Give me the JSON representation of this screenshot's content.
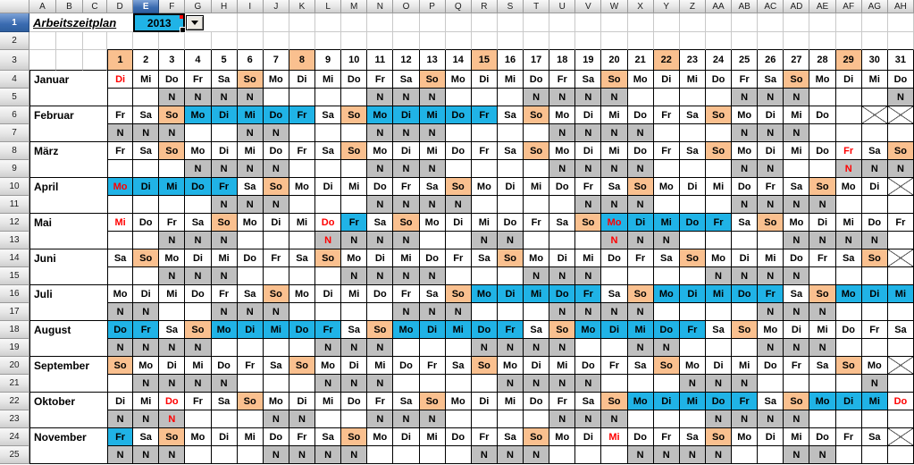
{
  "app": {
    "title": "Arbeitszeitplan",
    "year": "2013"
  },
  "colors": {
    "weekend": "#FAC08F",
    "shift": "#20B3E6",
    "night": "#BFBFBF",
    "holiday": "#FF0000",
    "header_selected": "#3A6BB0"
  },
  "sheet": {
    "column_letters": [
      "A",
      "B",
      "C",
      "D",
      "E",
      "F",
      "G",
      "H",
      "I",
      "J",
      "K",
      "L",
      "M",
      "N",
      "O",
      "P",
      "Q",
      "R",
      "S",
      "T",
      "U",
      "V",
      "W",
      "X",
      "Y",
      "Z",
      "AA",
      "AB",
      "AC",
      "AD",
      "AE",
      "AF",
      "AG",
      "AH"
    ],
    "row_numbers": [
      "1",
      "2",
      "3",
      "4",
      "5",
      "6",
      "7",
      "8",
      "9",
      "10",
      "11",
      "12",
      "13",
      "14",
      "15",
      "16",
      "17",
      "18",
      "19",
      "20",
      "21",
      "22",
      "23",
      "24",
      "25"
    ],
    "selected": {
      "column": "E",
      "row": "1"
    },
    "day_numbers": [
      1,
      2,
      3,
      4,
      5,
      6,
      7,
      8,
      9,
      10,
      11,
      12,
      13,
      14,
      15,
      16,
      17,
      18,
      19,
      20,
      21,
      22,
      23,
      24,
      25,
      26,
      27,
      28,
      29,
      30,
      31
    ],
    "highlighted_day_numbers": [
      1,
      8,
      15,
      22,
      29
    ],
    "night_label": "N",
    "months": [
      {
        "name": "Januar",
        "weekdays": [
          "Di",
          "Mi",
          "Do",
          "Fr",
          "Sa",
          "So",
          "Mo",
          "Di",
          "Mi",
          "Do",
          "Fr",
          "Sa",
          "So",
          "Mo",
          "Di",
          "Mi",
          "Do",
          "Fr",
          "Sa",
          "So",
          "Mo",
          "Di",
          "Mi",
          "Do",
          "Fr",
          "Sa",
          "So",
          "Mo",
          "Di",
          "Mi",
          "Do"
        ],
        "weekend_days": [
          6,
          13,
          20,
          27
        ],
        "shift_days": [],
        "holiday_days": [
          1
        ],
        "night_days": [
          3,
          4,
          5,
          6,
          11,
          12,
          13,
          17,
          18,
          19,
          20,
          25,
          26,
          27,
          31
        ],
        "holiday_night_days": [],
        "crossed_days": []
      },
      {
        "name": "Februar",
        "weekdays": [
          "Fr",
          "Sa",
          "So",
          "Mo",
          "Di",
          "Mi",
          "Do",
          "Fr",
          "Sa",
          "So",
          "Mo",
          "Di",
          "Mi",
          "Do",
          "Fr",
          "Sa",
          "So",
          "Mo",
          "Di",
          "Mi",
          "Do",
          "Fr",
          "Sa",
          "So",
          "Mo",
          "Di",
          "Mi",
          "Do",
          "",
          "",
          ""
        ],
        "weekend_days": [
          3,
          10,
          17,
          24
        ],
        "shift_days": [
          4,
          5,
          6,
          7,
          8,
          11,
          12,
          13,
          14,
          15
        ],
        "holiday_days": [],
        "night_days": [
          1,
          2,
          3,
          6,
          7,
          11,
          12,
          13,
          18,
          19,
          20,
          21,
          25,
          26,
          27
        ],
        "holiday_night_days": [],
        "crossed_days": [
          30,
          31
        ]
      },
      {
        "name": "März",
        "weekdays": [
          "Fr",
          "Sa",
          "So",
          "Mo",
          "Di",
          "Mi",
          "Do",
          "Fr",
          "Sa",
          "So",
          "Mo",
          "Di",
          "Mi",
          "Do",
          "Fr",
          "Sa",
          "So",
          "Mo",
          "Di",
          "Mi",
          "Do",
          "Fr",
          "Sa",
          "So",
          "Mo",
          "Di",
          "Mi",
          "Do",
          "Fr",
          "Sa",
          "So"
        ],
        "weekend_days": [
          3,
          10,
          17,
          24,
          31
        ],
        "shift_days": [],
        "holiday_days": [
          29
        ],
        "night_days": [
          4,
          5,
          6,
          7,
          11,
          12,
          13,
          18,
          19,
          20,
          21,
          25,
          26,
          29,
          30,
          31
        ],
        "holiday_night_days": [
          29
        ],
        "crossed_days": []
      },
      {
        "name": "April",
        "weekdays": [
          "Mo",
          "Di",
          "Mi",
          "Do",
          "Fr",
          "Sa",
          "So",
          "Mo",
          "Di",
          "Mi",
          "Do",
          "Fr",
          "Sa",
          "So",
          "Mo",
          "Di",
          "Mi",
          "Do",
          "Fr",
          "Sa",
          "So",
          "Mo",
          "Di",
          "Mi",
          "Do",
          "Fr",
          "Sa",
          "So",
          "Mo",
          "Di",
          ""
        ],
        "weekend_days": [
          7,
          14,
          21,
          28
        ],
        "shift_days": [
          1,
          2,
          3,
          4,
          5
        ],
        "holiday_days": [
          1
        ],
        "night_days": [
          5,
          6,
          7,
          11,
          12,
          13,
          14,
          19,
          20,
          21,
          25,
          26,
          27,
          28
        ],
        "holiday_night_days": [],
        "crossed_days": [
          31
        ]
      },
      {
        "name": "Mai",
        "weekdays": [
          "Mi",
          "Do",
          "Fr",
          "Sa",
          "So",
          "Mo",
          "Di",
          "Mi",
          "Do",
          "Fr",
          "Sa",
          "So",
          "Mo",
          "Di",
          "Mi",
          "Do",
          "Fr",
          "Sa",
          "So",
          "Mo",
          "Di",
          "Mi",
          "Do",
          "Fr",
          "Sa",
          "So",
          "Mo",
          "Di",
          "Mi",
          "Do",
          "Fr"
        ],
        "weekend_days": [
          5,
          12,
          19,
          26
        ],
        "shift_days": [
          10,
          20,
          21,
          22,
          23,
          24
        ],
        "holiday_days": [
          1,
          9,
          20
        ],
        "night_days": [
          3,
          4,
          5,
          9,
          10,
          11,
          12,
          15,
          16,
          20,
          21,
          22,
          27,
          28,
          29,
          30
        ],
        "holiday_night_days": [
          9,
          20
        ],
        "crossed_days": []
      },
      {
        "name": "Juni",
        "weekdays": [
          "Sa",
          "So",
          "Mo",
          "Di",
          "Mi",
          "Do",
          "Fr",
          "Sa",
          "So",
          "Mo",
          "Di",
          "Mi",
          "Do",
          "Fr",
          "Sa",
          "So",
          "Mo",
          "Di",
          "Mi",
          "Do",
          "Fr",
          "Sa",
          "So",
          "Mo",
          "Di",
          "Mi",
          "Do",
          "Fr",
          "Sa",
          "So",
          ""
        ],
        "weekend_days": [
          2,
          9,
          16,
          23,
          30
        ],
        "shift_days": [],
        "holiday_days": [],
        "night_days": [
          3,
          4,
          5,
          10,
          11,
          12,
          13,
          17,
          18,
          19,
          24,
          25,
          26,
          27
        ],
        "holiday_night_days": [],
        "crossed_days": [
          31
        ]
      },
      {
        "name": "Juli",
        "weekdays": [
          "Mo",
          "Di",
          "Mi",
          "Do",
          "Fr",
          "Sa",
          "So",
          "Mo",
          "Di",
          "Mi",
          "Do",
          "Fr",
          "Sa",
          "So",
          "Mo",
          "Di",
          "Mi",
          "Do",
          "Fr",
          "Sa",
          "So",
          "Mo",
          "Di",
          "Mi",
          "Do",
          "Fr",
          "Sa",
          "So",
          "Mo",
          "Di",
          "Mi"
        ],
        "weekend_days": [
          7,
          14,
          21,
          28
        ],
        "shift_days": [
          15,
          16,
          17,
          18,
          19,
          22,
          23,
          24,
          25,
          26,
          29,
          30,
          31
        ],
        "holiday_days": [],
        "night_days": [
          1,
          2,
          5,
          6,
          7,
          12,
          13,
          14,
          18,
          19,
          20,
          21,
          26,
          27,
          28
        ],
        "holiday_night_days": [],
        "crossed_days": []
      },
      {
        "name": "August",
        "weekdays": [
          "Do",
          "Fr",
          "Sa",
          "So",
          "Mo",
          "Di",
          "Mi",
          "Do",
          "Fr",
          "Sa",
          "So",
          "Mo",
          "Di",
          "Mi",
          "Do",
          "Fr",
          "Sa",
          "So",
          "Mo",
          "Di",
          "Mi",
          "Do",
          "Fr",
          "Sa",
          "So",
          "Mo",
          "Di",
          "Mi",
          "Do",
          "Fr",
          "Sa"
        ],
        "weekend_days": [
          4,
          11,
          18,
          25
        ],
        "shift_days": [
          1,
          2,
          5,
          6,
          7,
          8,
          9,
          12,
          13,
          14,
          15,
          16,
          19,
          20,
          21,
          22,
          23
        ],
        "holiday_days": [],
        "night_days": [
          1,
          2,
          3,
          4,
          9,
          10,
          11,
          15,
          16,
          17,
          18,
          21,
          22,
          26,
          27,
          28
        ],
        "holiday_night_days": [],
        "crossed_days": []
      },
      {
        "name": "September",
        "weekdays": [
          "So",
          "Mo",
          "Di",
          "Mi",
          "Do",
          "Fr",
          "Sa",
          "So",
          "Mo",
          "Di",
          "Mi",
          "Do",
          "Fr",
          "Sa",
          "So",
          "Mo",
          "Di",
          "Mi",
          "Do",
          "Fr",
          "Sa",
          "So",
          "Mo",
          "Di",
          "Mi",
          "Do",
          "Fr",
          "Sa",
          "So",
          "Mo",
          ""
        ],
        "weekend_days": [
          1,
          8,
          15,
          22,
          29
        ],
        "shift_days": [],
        "holiday_days": [],
        "night_days": [
          2,
          3,
          4,
          5,
          9,
          10,
          11,
          16,
          17,
          18,
          19,
          23,
          24,
          25,
          30
        ],
        "holiday_night_days": [],
        "crossed_days": [
          31
        ]
      },
      {
        "name": "Oktober",
        "weekdays": [
          "Di",
          "Mi",
          "Do",
          "Fr",
          "Sa",
          "So",
          "Mo",
          "Di",
          "Mi",
          "Do",
          "Fr",
          "Sa",
          "So",
          "Mo",
          "Di",
          "Mi",
          "Do",
          "Fr",
          "Sa",
          "So",
          "Mo",
          "Di",
          "Mi",
          "Do",
          "Fr",
          "Sa",
          "So",
          "Mo",
          "Di",
          "Mi",
          "Do"
        ],
        "weekend_days": [
          6,
          13,
          20,
          27
        ],
        "shift_days": [
          21,
          22,
          23,
          24,
          25,
          28,
          29,
          30
        ],
        "holiday_days": [
          3,
          31
        ],
        "night_days": [
          1,
          2,
          3,
          7,
          8,
          11,
          12,
          13,
          18,
          19,
          20,
          24,
          25,
          26,
          27
        ],
        "holiday_night_days": [
          3
        ],
        "crossed_days": []
      },
      {
        "name": "November",
        "weekdays": [
          "Fr",
          "Sa",
          "So",
          "Mo",
          "Di",
          "Mi",
          "Do",
          "Fr",
          "Sa",
          "So",
          "Mo",
          "Di",
          "Mi",
          "Do",
          "Fr",
          "Sa",
          "So",
          "Mo",
          "Di",
          "Mi",
          "Do",
          "Fr",
          "Sa",
          "So",
          "Mo",
          "Di",
          "Mi",
          "Do",
          "Fr",
          "Sa",
          ""
        ],
        "weekend_days": [
          3,
          10,
          17,
          24
        ],
        "shift_days": [
          1
        ],
        "holiday_days": [
          20
        ],
        "night_days": [
          1,
          2,
          3,
          7,
          8,
          9,
          10,
          15,
          16,
          17,
          21,
          22,
          23,
          24,
          27,
          28
        ],
        "holiday_night_days": [],
        "crossed_days": [
          31
        ]
      }
    ]
  }
}
